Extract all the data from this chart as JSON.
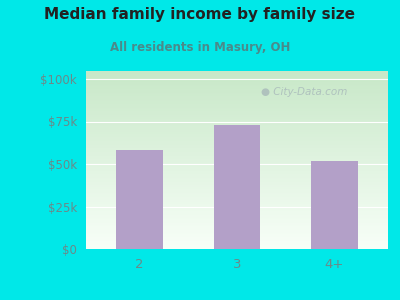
{
  "categories": [
    "2",
    "3",
    "4+"
  ],
  "values": [
    58000,
    73000,
    52000
  ],
  "bar_color": "#b3a0c8",
  "title": "Median family income by family size",
  "subtitle": "All residents in Masury, OH",
  "yticks": [
    0,
    25000,
    50000,
    75000,
    100000
  ],
  "ytick_labels": [
    "$0",
    "$25k",
    "$50k",
    "$75k",
    "$100k"
  ],
  "ylim": [
    0,
    105000
  ],
  "bg_outer": "#00e8e8",
  "gradient_top": "#c8e8c8",
  "gradient_bottom": "#f0f8f0",
  "gradient_right": "#e8f0f8",
  "title_color": "#222222",
  "subtitle_color": "#4a8a8a",
  "tick_color": "#6a8a8a",
  "watermark_text": "City-Data.com",
  "watermark_color": "#aabbbb"
}
